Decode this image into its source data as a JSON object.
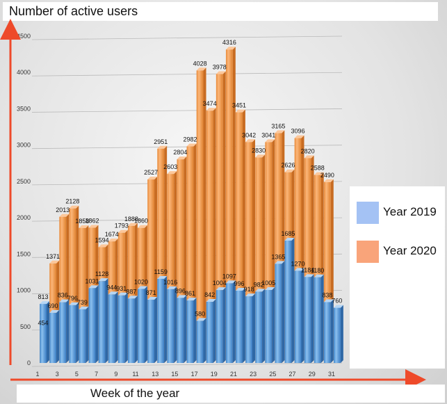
{
  "chart_data": {
    "type": "bar",
    "title": "Number of active users",
    "xlabel": "Week of the year",
    "ylabel": "",
    "ylim": [
      0,
      4500
    ],
    "yticks": [
      0,
      500,
      1000,
      1500,
      2000,
      2500,
      3000,
      3500,
      4000,
      4500
    ],
    "categories": [
      1,
      2,
      3,
      4,
      5,
      6,
      7,
      8,
      9,
      10,
      11,
      12,
      13,
      14,
      15,
      16,
      17,
      18,
      19,
      20,
      21,
      22,
      23,
      24,
      25,
      26,
      27,
      28,
      29,
      30,
      31
    ],
    "xtick_labels": [
      1,
      3,
      5,
      7,
      9,
      11,
      13,
      15,
      17,
      19,
      21,
      23,
      25,
      27,
      29,
      31
    ],
    "grid": true,
    "legend_position": "right",
    "series": [
      {
        "name": "Year 2019",
        "color": "#5b9bd5",
        "values": [
          813,
          690,
          836,
          796,
          739,
          1031,
          1128,
          944,
          931,
          887,
          1020,
          871,
          1159,
          1016,
          896,
          861,
          580,
          842,
          1004,
          1097,
          996,
          918,
          982,
          1005,
          1365,
          1685,
          1270,
          1184,
          1180,
          838,
          760
        ]
      },
      {
        "name": "Year 2020",
        "color": "#f5a05a",
        "values": [
          454,
          1371,
          2013,
          2128,
          1858,
          1862,
          1594,
          1674,
          1793,
          1888,
          1860,
          2527,
          2951,
          2603,
          2804,
          2982,
          4028,
          3474,
          3978,
          4316,
          3451,
          3042,
          2830,
          3041,
          3165,
          2626,
          3096,
          2820,
          2588,
          2490,
          null
        ]
      }
    ]
  },
  "legend": {
    "items": [
      {
        "label": "Year 2019",
        "color": "#a4c2f4"
      },
      {
        "label": "Year 2020",
        "color": "#f9a47a"
      }
    ]
  }
}
